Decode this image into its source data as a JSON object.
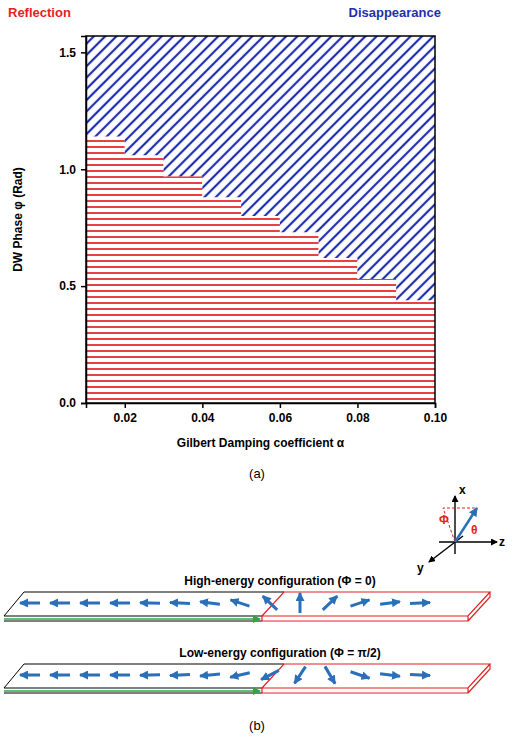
{
  "chart_data": {
    "type": "area",
    "x_label": "Gilbert Damping coefficient α",
    "y_label": "DW Phase φ (Rad)",
    "caption": "(a)",
    "x": [
      0.01,
      0.02,
      0.03,
      0.04,
      0.05,
      0.06,
      0.07,
      0.08,
      0.09,
      0.1
    ],
    "series": [
      {
        "name": "Reflection",
        "color": "#e31e24",
        "values": [
          1.14,
          1.06,
          0.97,
          0.88,
          0.8,
          0.73,
          0.62,
          0.53,
          0.44,
          0.44
        ]
      },
      {
        "name": "Disappearance",
        "color": "#1f2fb0",
        "values": [
          1.14,
          1.06,
          0.97,
          0.88,
          0.8,
          0.73,
          0.62,
          0.53,
          0.44,
          0.44
        ]
      }
    ],
    "xlim": [
      0.01,
      0.1
    ],
    "ylim": [
      0,
      1.57
    ],
    "xticks": [
      0.02,
      0.04,
      0.06,
      0.08,
      {
        "value": 0.1,
        "label": "0.10"
      }
    ],
    "yticks": [
      {
        "value": 0,
        "label": "0.0"
      },
      0.5,
      {
        "value": 1.0,
        "label": "1.0"
      },
      1.5
    ]
  },
  "diagram": {
    "caption": "(b)",
    "axis_labels": {
      "x": "x",
      "y": "y",
      "z": "z",
      "phi": "Φ",
      "theta": "θ"
    },
    "configurations": [
      {
        "label": "High-energy configuration (Φ = 0)"
      },
      {
        "label": "Low-energy configuration (Φ = π/2)"
      }
    ]
  }
}
